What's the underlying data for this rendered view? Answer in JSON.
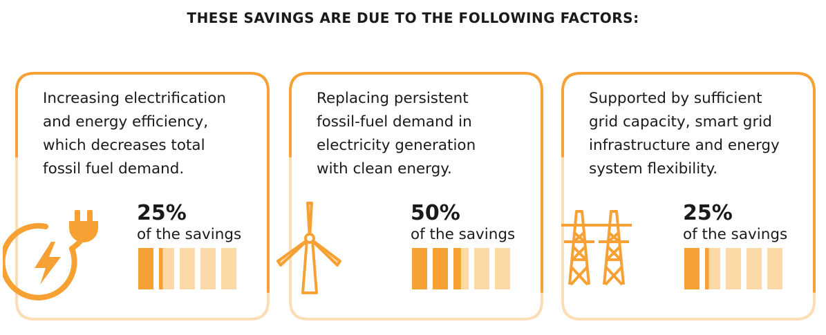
{
  "title": "THESE SAVINGS ARE DUE TO THE FOLLOWING FACTORS:",
  "colors": {
    "accent": "#F7A034",
    "light": "#FDD9A8",
    "frame_light": "#FCDDB5"
  },
  "cards": [
    {
      "icon": "electric-plug-icon",
      "lines": [
        "Increasing electrification",
        "and energy efficiency,",
        "which decreases total",
        "fossil fuel demand."
      ],
      "percent": "25%",
      "caption": "of the savings",
      "share": 0.25
    },
    {
      "icon": "wind-turbine-icon",
      "lines": [
        "Replacing persistent",
        "fossil-fuel demand in",
        "electricity generation",
        "with clean energy."
      ],
      "percent": "50%",
      "caption": "of the savings",
      "share": 0.5
    },
    {
      "icon": "power-pylons-icon",
      "lines": [
        "Supported by sufficient",
        "grid capacity, smart grid",
        "infrastructure and energy",
        "system flexibility."
      ],
      "percent": "25%",
      "caption": "of the savings",
      "share": 0.25
    }
  ]
}
